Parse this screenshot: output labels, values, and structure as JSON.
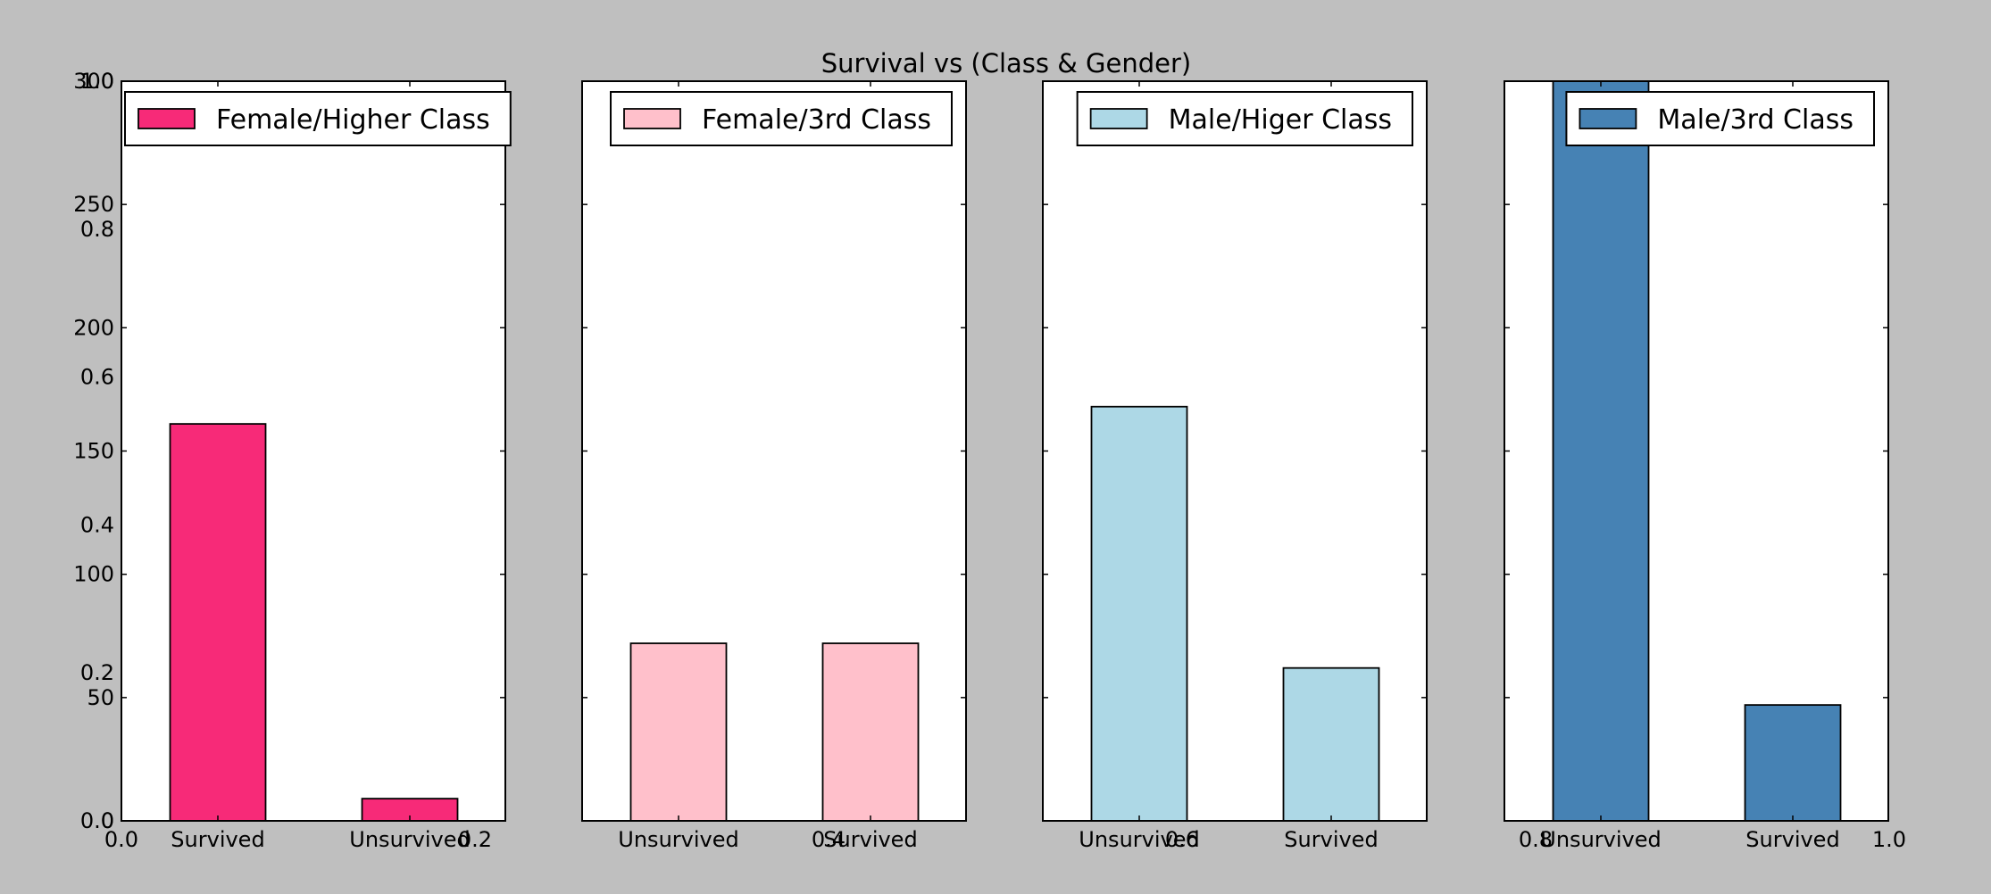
{
  "chart_data": {
    "type": "bar",
    "title": "Survival vs (Class & Gender)",
    "outer_axis": {
      "xlim": [
        0.0,
        1.0
      ],
      "ylim": [
        0.0,
        1.0
      ],
      "xticks": [
        "0.0",
        "0.2",
        "0.4",
        "0.6",
        "0.8",
        "1.0"
      ],
      "yticks": [
        "0.0",
        "0.2",
        "0.4",
        "0.6",
        "0.8",
        "1.0"
      ]
    },
    "ylim": [
      0,
      300
    ],
    "yticks": [
      "0",
      "50",
      "100",
      "150",
      "200",
      "250",
      "300"
    ],
    "grid": false,
    "panels": [
      {
        "legend": "Female/Higher Class",
        "legend_position": "top-left",
        "color": "#f72a78",
        "categories": [
          "Survived",
          "Unsurvived"
        ],
        "values": [
          161,
          9
        ]
      },
      {
        "legend": "Female/3rd Class",
        "legend_position": "top-right",
        "color": "#ffc0cb",
        "categories": [
          "Unsurvived",
          "Survived"
        ],
        "values": [
          72,
          72
        ]
      },
      {
        "legend": "Male/Higer Class",
        "legend_position": "top-right",
        "color": "#add8e6",
        "categories": [
          "Unsurvived",
          "Survived"
        ],
        "values": [
          168,
          62
        ]
      },
      {
        "legend": "Male/3rd Class",
        "legend_position": "top-right",
        "color": "#4682b4",
        "categories": [
          "Unsurvived",
          "Survived"
        ],
        "values": [
          300,
          47
        ]
      }
    ]
  }
}
